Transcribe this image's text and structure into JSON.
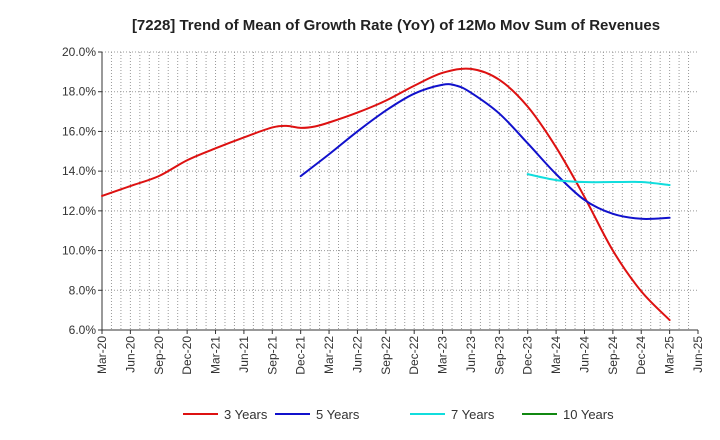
{
  "chart_data": {
    "type": "line",
    "title": "[7228]  Trend of Mean of Growth Rate (YoY) of 12Mo Mov Sum of Revenues",
    "xlabel": "",
    "ylabel": "",
    "ylim": [
      6.0,
      20.0
    ],
    "y_ticks": [
      6.0,
      8.0,
      10.0,
      12.0,
      14.0,
      16.0,
      18.0,
      20.0
    ],
    "y_tick_labels": [
      "6.0%",
      "8.0%",
      "10.0%",
      "12.0%",
      "14.0%",
      "16.0%",
      "18.0%",
      "20.0%"
    ],
    "x_tick_labels": [
      "Mar-20",
      "Jun-20",
      "Sep-20",
      "Dec-20",
      "Mar-21",
      "Jun-21",
      "Sep-21",
      "Dec-21",
      "Mar-22",
      "Jun-22",
      "Sep-22",
      "Dec-22",
      "Mar-23",
      "Jun-23",
      "Sep-23",
      "Dec-23",
      "Mar-24",
      "Jun-24",
      "Sep-24",
      "Dec-24",
      "Mar-25",
      "Jun-25"
    ],
    "grid": true,
    "legend_position": "bottom",
    "series": [
      {
        "name": "3 Years",
        "color": "#dd1111",
        "points": [
          [
            0,
            12.75
          ],
          [
            1,
            13.25
          ],
          [
            2,
            13.75
          ],
          [
            3,
            14.55
          ],
          [
            4,
            15.15
          ],
          [
            5,
            15.7
          ],
          [
            6,
            16.2
          ],
          [
            6.5,
            16.28
          ],
          [
            7,
            16.18
          ],
          [
            7.5,
            16.25
          ],
          [
            8,
            16.45
          ],
          [
            9,
            16.95
          ],
          [
            10,
            17.55
          ],
          [
            11,
            18.3
          ],
          [
            12,
            18.95
          ],
          [
            13,
            19.15
          ],
          [
            14,
            18.6
          ],
          [
            15,
            17.25
          ],
          [
            16,
            15.2
          ],
          [
            17,
            12.7
          ],
          [
            18,
            10.0
          ],
          [
            19,
            7.95
          ],
          [
            20,
            6.5
          ]
        ]
      },
      {
        "name": "5 Years",
        "color": "#1111cc",
        "points": [
          [
            7,
            13.75
          ],
          [
            8,
            14.85
          ],
          [
            9,
            16.0
          ],
          [
            10,
            17.05
          ],
          [
            11,
            17.9
          ],
          [
            12,
            18.35
          ],
          [
            12.5,
            18.3
          ],
          [
            13,
            17.95
          ],
          [
            14,
            16.9
          ],
          [
            15,
            15.4
          ],
          [
            16,
            13.85
          ],
          [
            17,
            12.55
          ],
          [
            18,
            11.85
          ],
          [
            19,
            11.6
          ],
          [
            20,
            11.65
          ]
        ]
      },
      {
        "name": "7 Years",
        "color": "#11dddd",
        "points": [
          [
            15,
            13.85
          ],
          [
            16,
            13.55
          ],
          [
            17,
            13.45
          ],
          [
            18,
            13.45
          ],
          [
            19,
            13.45
          ],
          [
            20,
            13.3
          ]
        ]
      },
      {
        "name": "10 Years",
        "color": "#118811",
        "points": []
      }
    ]
  }
}
